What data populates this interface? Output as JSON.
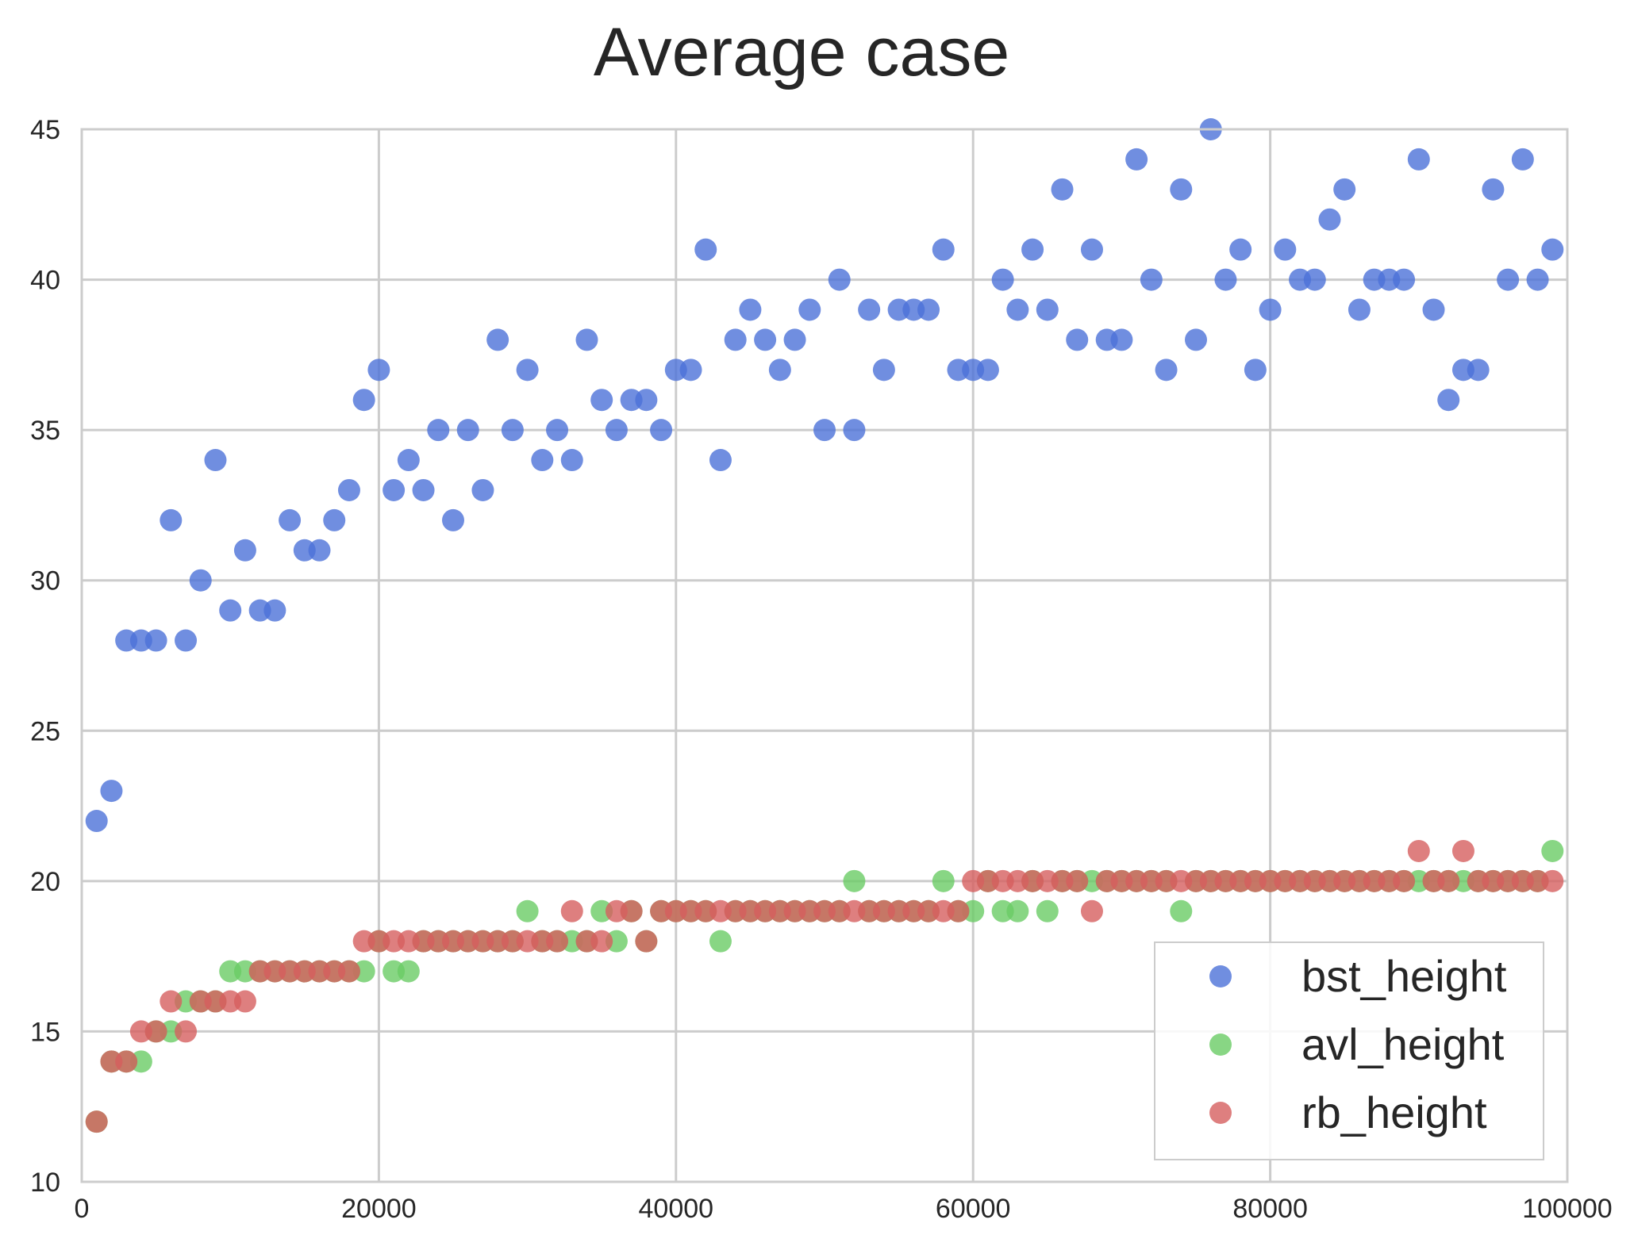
{
  "chart_data": {
    "type": "scatter",
    "title": "Average case",
    "xlabel": "",
    "ylabel": "",
    "xlim": [
      0,
      100000
    ],
    "ylim": [
      10,
      45
    ],
    "xticks": [
      0,
      20000,
      40000,
      60000,
      80000,
      100000
    ],
    "yticks": [
      10,
      15,
      20,
      25,
      30,
      35,
      40,
      45
    ],
    "xtick_labels": [
      "0",
      "20000",
      "40000",
      "60000",
      "80000",
      "100000"
    ],
    "ytick_labels": [
      "10",
      "15",
      "20",
      "25",
      "30",
      "35",
      "40",
      "45"
    ],
    "grid": true,
    "legend_position": "lower-right",
    "x": [
      1000,
      2000,
      3000,
      4000,
      5000,
      6000,
      7000,
      8000,
      9000,
      10000,
      11000,
      12000,
      13000,
      14000,
      15000,
      16000,
      17000,
      18000,
      19000,
      20000,
      21000,
      22000,
      23000,
      24000,
      25000,
      26000,
      27000,
      28000,
      29000,
      30000,
      31000,
      32000,
      33000,
      34000,
      35000,
      36000,
      37000,
      38000,
      39000,
      40000,
      41000,
      42000,
      43000,
      44000,
      45000,
      46000,
      47000,
      48000,
      49000,
      50000,
      51000,
      52000,
      53000,
      54000,
      55000,
      56000,
      57000,
      58000,
      59000,
      60000,
      61000,
      62000,
      63000,
      64000,
      65000,
      66000,
      67000,
      68000,
      69000,
      70000,
      71000,
      72000,
      73000,
      74000,
      75000,
      76000,
      77000,
      78000,
      79000,
      80000,
      81000,
      82000,
      83000,
      84000,
      85000,
      86000,
      87000,
      88000,
      89000,
      90000,
      91000,
      92000,
      93000,
      94000,
      95000,
      96000,
      97000,
      98000,
      99000
    ],
    "series": [
      {
        "name": "bst_height",
        "color": "#4c72d8",
        "values": [
          22,
          23,
          28,
          28,
          28,
          32,
          28,
          30,
          34,
          29,
          31,
          29,
          29,
          32,
          31,
          31,
          32,
          33,
          36,
          37,
          33,
          34,
          33,
          35,
          32,
          35,
          33,
          38,
          35,
          37,
          34,
          35,
          34,
          38,
          36,
          35,
          36,
          36,
          35,
          37,
          37,
          41,
          34,
          38,
          39,
          38,
          37,
          38,
          39,
          35,
          40,
          35,
          39,
          37,
          39,
          39,
          39,
          41,
          37,
          37,
          37,
          40,
          39,
          41,
          39,
          43,
          38,
          41,
          38,
          38,
          44,
          40,
          37,
          43,
          38,
          45,
          40,
          41,
          37,
          39,
          41,
          40,
          40,
          42,
          43,
          39,
          40,
          40,
          40,
          44,
          39,
          36,
          37,
          37,
          43,
          40,
          44,
          40,
          41
        ]
      },
      {
        "name": "avl_height",
        "color": "#6acc65",
        "values": [
          12,
          14,
          14,
          14,
          15,
          15,
          16,
          16,
          16,
          17,
          17,
          17,
          17,
          17,
          17,
          17,
          17,
          17,
          17,
          18,
          17,
          17,
          18,
          18,
          18,
          18,
          18,
          18,
          18,
          19,
          18,
          18,
          18,
          18,
          19,
          18,
          19,
          18,
          19,
          19,
          19,
          19,
          18,
          19,
          19,
          19,
          19,
          19,
          19,
          19,
          19,
          20,
          19,
          19,
          19,
          19,
          19,
          20,
          19,
          19,
          20,
          19,
          19,
          20,
          19,
          20,
          20,
          20,
          20,
          20,
          20,
          20,
          20,
          19,
          20,
          20,
          20,
          20,
          20,
          20,
          20,
          20,
          20,
          20,
          20,
          20,
          20,
          20,
          20,
          20,
          20,
          20,
          20,
          20,
          20,
          20,
          20,
          20,
          21
        ]
      },
      {
        "name": "rb_height",
        "color": "#d65f5f",
        "values": [
          12,
          14,
          14,
          15,
          15,
          16,
          15,
          16,
          16,
          16,
          16,
          17,
          17,
          17,
          17,
          17,
          17,
          17,
          18,
          18,
          18,
          18,
          18,
          18,
          18,
          18,
          18,
          18,
          18,
          18,
          18,
          18,
          19,
          18,
          18,
          19,
          19,
          18,
          19,
          19,
          19,
          19,
          19,
          19,
          19,
          19,
          19,
          19,
          19,
          19,
          19,
          19,
          19,
          19,
          19,
          19,
          19,
          19,
          19,
          20,
          20,
          20,
          20,
          20,
          20,
          20,
          20,
          19,
          20,
          20,
          20,
          20,
          20,
          20,
          20,
          20,
          20,
          20,
          20,
          20,
          20,
          20,
          20,
          20,
          20,
          20,
          20,
          20,
          20,
          21,
          20,
          20,
          21,
          20,
          20,
          20,
          20,
          20,
          20
        ]
      }
    ]
  }
}
